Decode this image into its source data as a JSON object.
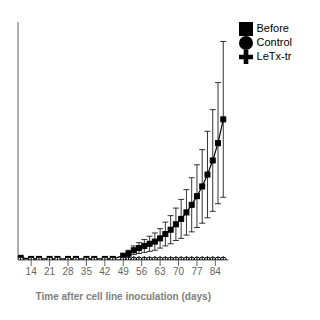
{
  "chart_data": {
    "type": "line",
    "x_label": "Time after cell line inoculation (days)",
    "x": [
      10,
      14,
      17,
      21,
      24,
      28,
      31,
      35,
      38,
      42,
      45,
      49,
      51,
      53,
      55,
      57,
      59,
      61,
      63,
      65,
      67,
      69,
      71,
      73,
      75,
      77,
      79,
      81,
      83,
      85,
      87
    ],
    "series": [
      {
        "name": "Before",
        "color": "#000000",
        "marker": "square",
        "line_style": "solid",
        "values": [
          0.02,
          0.01,
          0.01,
          0.01,
          0.01,
          0.01,
          0.01,
          0.01,
          0.01,
          0.01,
          0.01,
          0.04,
          0.06,
          0.09,
          0.11,
          0.13,
          0.15,
          0.17,
          0.2,
          0.24,
          0.28,
          0.33,
          0.38,
          0.44,
          0.51,
          0.59,
          0.68,
          0.79,
          0.92,
          1.08,
          1.3
        ],
        "errors": [
          0.01,
          0.0,
          0.0,
          0.0,
          0.0,
          0.0,
          0.0,
          0.0,
          0.0,
          0.0,
          0.0,
          0.02,
          0.03,
          0.04,
          0.05,
          0.06,
          0.07,
          0.08,
          0.09,
          0.11,
          0.13,
          0.15,
          0.18,
          0.21,
          0.25,
          0.29,
          0.34,
          0.4,
          0.47,
          0.56,
          0.72
        ]
      },
      {
        "name": "Control",
        "color": "#000000",
        "marker": "circle",
        "line_style": "dashed",
        "values": [
          0.0,
          0.0,
          0.0,
          0.0,
          0.0,
          0.0,
          0.0,
          0.0,
          0.0,
          0.0,
          0.0,
          0.0,
          0.0,
          0.0,
          0.0,
          0.0,
          0.0,
          0.0,
          0.0,
          0.0,
          0.0,
          0.0,
          0.0,
          0.0,
          0.0,
          0.0,
          0.0,
          0.0,
          0.0,
          0.0,
          0.0
        ]
      },
      {
        "name": "LeTx-tr",
        "color": "#000000",
        "marker": "plus",
        "line_style": "solid",
        "values": [
          0.0,
          0.0,
          0.0,
          0.0,
          0.0,
          0.0,
          0.0,
          0.0,
          0.0,
          0.0,
          0.0,
          0.0,
          0.0,
          0.0,
          0.0,
          0.0,
          0.0,
          0.0,
          0.0,
          0.0,
          0.0,
          0.0,
          0.0,
          0.0,
          0.0,
          0.0,
          0.0,
          0.0,
          0.0,
          0.0,
          0.0
        ]
      }
    ],
    "xlim": [
      9,
      89
    ],
    "xticks": [
      14,
      21,
      28,
      35,
      42,
      49,
      56,
      63,
      70,
      77,
      84
    ],
    "ylim": [
      0,
      2.2
    ],
    "grid": false,
    "legend": "right",
    "tick_labels": "x"
  }
}
